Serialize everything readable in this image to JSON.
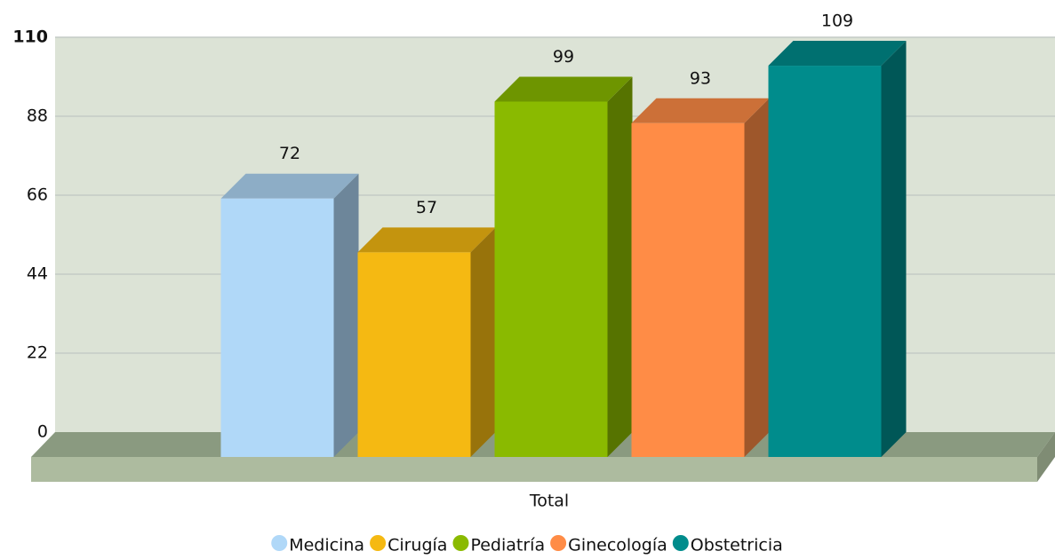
{
  "chart_data": {
    "type": "bar3d",
    "categories": [
      "Total"
    ],
    "series": [
      {
        "name": "Medicina",
        "color": "#b0d8f8",
        "values": [
          72
        ]
      },
      {
        "name": "Cirugía",
        "color": "#f5b912",
        "values": [
          57
        ]
      },
      {
        "name": "Pediatría",
        "color": "#8aba00",
        "values": [
          99
        ]
      },
      {
        "name": "Ginecología",
        "color": "#ff8c46",
        "values": [
          93
        ]
      },
      {
        "name": "Obstetricia",
        "color": "#008c8c",
        "values": [
          109
        ]
      }
    ],
    "ylim": [
      0,
      110
    ],
    "yticks": [
      0,
      22,
      44,
      66,
      88,
      110
    ],
    "grid": true,
    "legend": "bottom"
  }
}
